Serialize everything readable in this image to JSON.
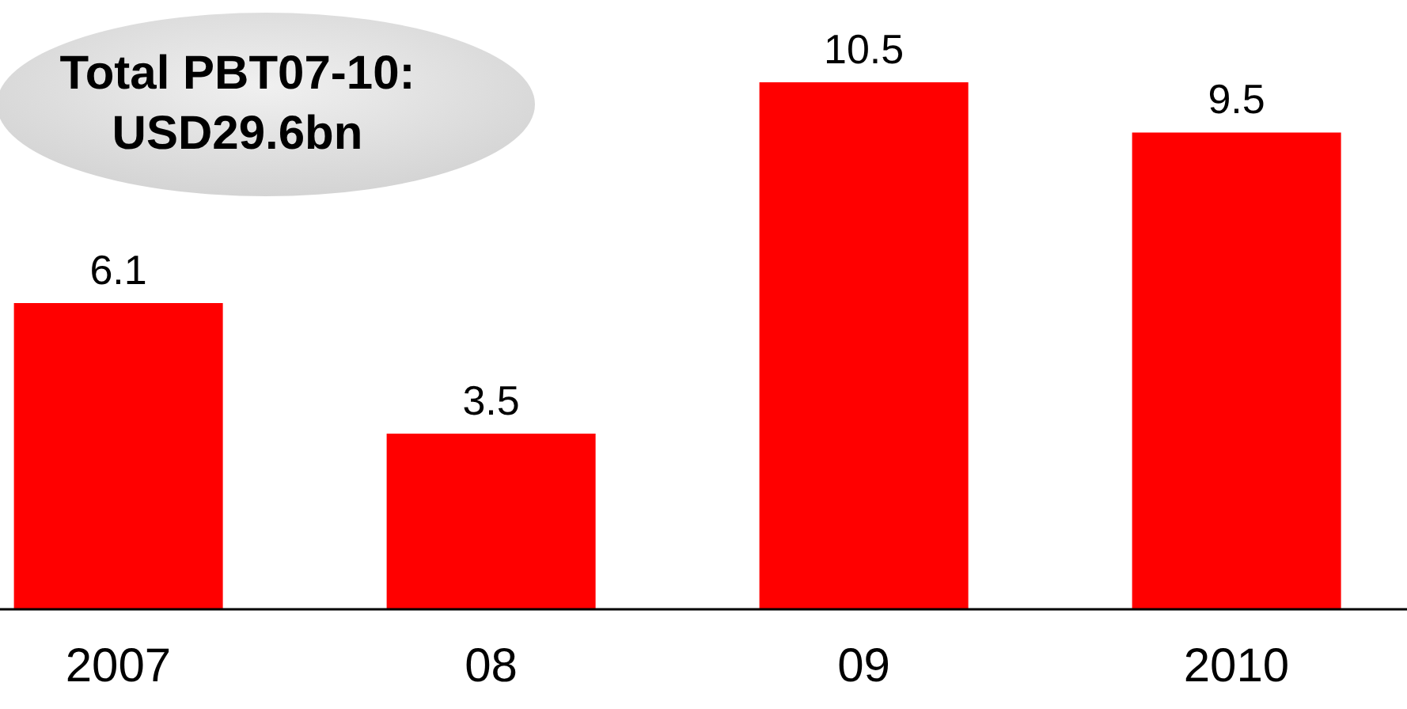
{
  "chart_data": {
    "type": "bar",
    "categories": [
      "2007",
      "08",
      "09",
      "2010"
    ],
    "values": [
      6.1,
      3.5,
      10.5,
      9.5
    ],
    "color": "#ff0000",
    "data_labels": true,
    "annotations": [
      "Total PBT07-10:\nUSD29.6bn"
    ]
  }
}
